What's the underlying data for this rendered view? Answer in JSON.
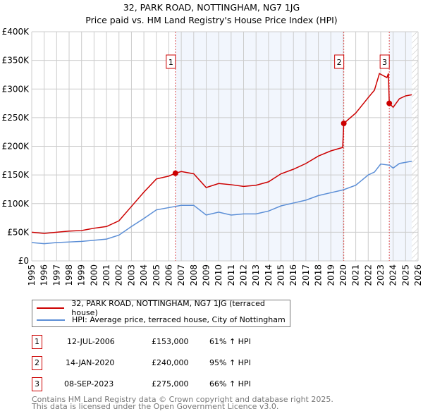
{
  "title": "32, PARK ROAD, NOTTINGHAM, NG7 1JG",
  "subtitle": "Price paid vs. HM Land Registry's House Price Index (HPI)",
  "chart_data": {
    "type": "line",
    "title": "32, PARK ROAD, NOTTINGHAM, NG7 1JG — Price paid vs. HM Land Registry's House Price Index (HPI)",
    "xlim": [
      1995,
      2026
    ],
    "ylim": [
      0,
      400000
    ],
    "x_ticks": [
      "1995",
      "1996",
      "1997",
      "1998",
      "1999",
      "2000",
      "2001",
      "2002",
      "2003",
      "2004",
      "2005",
      "2006",
      "2007",
      "2008",
      "2009",
      "2010",
      "2011",
      "2012",
      "2013",
      "2014",
      "2015",
      "2016",
      "2017",
      "2018",
      "2019",
      "2020",
      "2021",
      "2022",
      "2023",
      "2024",
      "2025",
      "2026"
    ],
    "y_ticks": [
      {
        "v": 0,
        "label": "£0"
      },
      {
        "v": 50000,
        "label": "£50K"
      },
      {
        "v": 100000,
        "label": "£100K"
      },
      {
        "v": 150000,
        "label": "£150K"
      },
      {
        "v": 200000,
        "label": "£200K"
      },
      {
        "v": 250000,
        "label": "£250K"
      },
      {
        "v": 300000,
        "label": "£300K"
      },
      {
        "v": 350000,
        "label": "£350K"
      },
      {
        "v": 400000,
        "label": "£400K"
      }
    ],
    "grid": true,
    "series": [
      {
        "name": "32, PARK ROAD, NOTTINGHAM, NG7 1JG (terraced house)",
        "color": "#cc0000",
        "x": [
          1995,
          1996,
          1997,
          1998,
          1999,
          2000,
          2001,
          2002,
          2003,
          2004,
          2005,
          2006,
          2006.53,
          2007,
          2008,
          2009,
          2010,
          2011,
          2012,
          2013,
          2014,
          2015,
          2016,
          2017,
          2018,
          2019,
          2019.95,
          2020.04,
          2021,
          2022,
          2022.5,
          2022.9,
          2023.5,
          2023.62,
          2023.69,
          2024,
          2024.5,
          2025,
          2025.5
        ],
        "y": [
          50000,
          48000,
          50000,
          52000,
          53000,
          57000,
          60000,
          70000,
          95000,
          120000,
          143000,
          148000,
          153000,
          156000,
          152000,
          128000,
          135000,
          133000,
          130000,
          132000,
          138000,
          152000,
          160000,
          170000,
          183000,
          192000,
          198000,
          240000,
          258000,
          285000,
          298000,
          327000,
          320000,
          327000,
          275000,
          268000,
          283000,
          288000,
          290000
        ]
      },
      {
        "name": "HPI: Average price, terraced house, City of Nottingham",
        "color": "#5b8ed6",
        "x": [
          1995,
          1996,
          1997,
          1998,
          1999,
          2000,
          2001,
          2002,
          2003,
          2004,
          2005,
          2006,
          2007,
          2008,
          2009,
          2010,
          2011,
          2012,
          2013,
          2014,
          2015,
          2016,
          2017,
          2018,
          2019,
          2020,
          2021,
          2022,
          2022.5,
          2023,
          2023.7,
          2024,
          2024.5,
          2025,
          2025.5
        ],
        "y": [
          32000,
          30000,
          32000,
          33000,
          34000,
          36000,
          38000,
          45000,
          60000,
          74000,
          89000,
          93000,
          97000,
          97000,
          80000,
          85000,
          80000,
          82000,
          82000,
          87000,
          96000,
          101000,
          106000,
          114000,
          119000,
          124000,
          132000,
          150000,
          155000,
          169000,
          167000,
          162000,
          170000,
          172000,
          174000
        ]
      }
    ],
    "sales": [
      {
        "label": "1",
        "x": 2006.53,
        "y": 153000
      },
      {
        "label": "2",
        "x": 2020.04,
        "y": 240000
      },
      {
        "label": "3",
        "x": 2023.69,
        "y": 275000
      }
    ],
    "legend": "below"
  },
  "legend": [
    {
      "label": "32, PARK ROAD, NOTTINGHAM, NG7 1JG (terraced house)",
      "color": "#cc0000"
    },
    {
      "label": "HPI: Average price, terraced house, City of Nottingham",
      "color": "#5b8ed6"
    }
  ],
  "transactions": [
    {
      "num": "1",
      "date": "12-JUL-2006",
      "price": "£153,000",
      "hpi": "61% ↑ HPI"
    },
    {
      "num": "2",
      "date": "14-JAN-2020",
      "price": "£240,000",
      "hpi": "95% ↑ HPI"
    },
    {
      "num": "3",
      "date": "08-SEP-2023",
      "price": "£275,000",
      "hpi": "66% ↑ HPI"
    }
  ],
  "footer": [
    "Contains HM Land Registry data © Crown copyright and database right 2025.",
    "This data is licensed under the Open Government Licence v3.0."
  ]
}
